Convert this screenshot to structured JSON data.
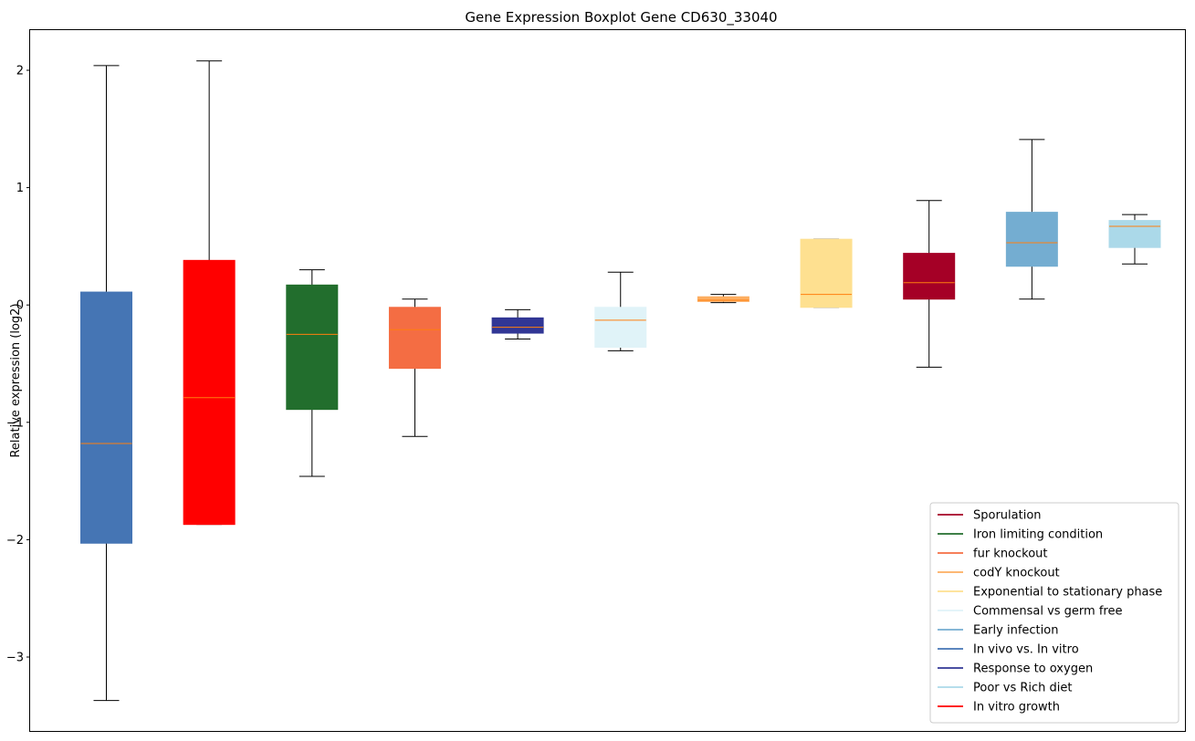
{
  "chart_data": {
    "type": "box",
    "title": "Gene Expression Boxplot Gene CD630_33040",
    "xlabel": "",
    "ylabel": "Relative expression (log2)",
    "ylim": [
      -3.6,
      2.35
    ],
    "yticks": [
      -3,
      -2,
      -1,
      0,
      1,
      2
    ],
    "ytick_labels": [
      "−3",
      "−2",
      "−1",
      "0",
      "1",
      "2"
    ],
    "median_color": "#ff7f0e",
    "grid": false,
    "legend_position": "lower-right",
    "series": [
      {
        "name": "In vivo vs. In vitro",
        "color": "#4575b4",
        "whisker_low": -3.37,
        "q1": -2.03,
        "median": -1.18,
        "q3": 0.11,
        "whisker_high": 2.04
      },
      {
        "name": "In vitro growth",
        "color": "#ff0000",
        "whisker_low": -1.87,
        "q1": -1.87,
        "median": -0.79,
        "q3": 0.38,
        "whisker_high": 2.08
      },
      {
        "name": "Iron limiting condition",
        "color": "#226e2d",
        "whisker_low": -1.46,
        "q1": -0.89,
        "median": -0.25,
        "q3": 0.17,
        "whisker_high": 0.3
      },
      {
        "name": "fur knockout",
        "color": "#f46d43",
        "whisker_low": -1.12,
        "q1": -0.54,
        "median": -0.21,
        "q3": -0.02,
        "whisker_high": 0.05
      },
      {
        "name": "Response to oxygen",
        "color": "#313695",
        "whisker_low": -0.29,
        "q1": -0.24,
        "median": -0.19,
        "q3": -0.11,
        "whisker_high": -0.04
      },
      {
        "name": "Commensal vs germ free",
        "color": "#e0f3f8",
        "whisker_low": -0.39,
        "q1": -0.36,
        "median": -0.13,
        "q3": -0.02,
        "whisker_high": 0.28
      },
      {
        "name": "codY knockout",
        "color": "#fdae61",
        "whisker_low": 0.02,
        "q1": 0.03,
        "median": 0.04,
        "q3": 0.07,
        "whisker_high": 0.09
      },
      {
        "name": "Exponential to stationary phase",
        "color": "#fee090",
        "whisker_low": -0.02,
        "q1": -0.02,
        "median": 0.09,
        "q3": 0.56,
        "whisker_high": 0.56
      },
      {
        "name": "Sporulation",
        "color": "#a50026",
        "whisker_low": -0.53,
        "q1": 0.05,
        "median": 0.19,
        "q3": 0.44,
        "whisker_high": 0.89
      },
      {
        "name": "Early infection",
        "color": "#74add1",
        "whisker_low": 0.05,
        "q1": 0.33,
        "median": 0.53,
        "q3": 0.79,
        "whisker_high": 1.41
      },
      {
        "name": "Poor vs Rich diet",
        "color": "#abd9e9",
        "whisker_low": 0.35,
        "q1": 0.49,
        "median": 0.67,
        "q3": 0.72,
        "whisker_high": 0.77
      }
    ],
    "legend": [
      {
        "label": "Sporulation",
        "color": "#a50026"
      },
      {
        "label": "Iron limiting condition",
        "color": "#226e2d"
      },
      {
        "label": "fur knockout",
        "color": "#f46d43"
      },
      {
        "label": "codY knockout",
        "color": "#fdae61"
      },
      {
        "label": "Exponential to stationary phase",
        "color": "#fee090"
      },
      {
        "label": "Commensal vs germ free",
        "color": "#e0f3f8"
      },
      {
        "label": "Early infection",
        "color": "#74add1"
      },
      {
        "label": "In vivo vs. In vitro",
        "color": "#4575b4"
      },
      {
        "label": "Response to oxygen",
        "color": "#313695"
      },
      {
        "label": "Poor vs Rich diet",
        "color": "#abd9e9"
      },
      {
        "label": "In vitro growth",
        "color": "#ff0000"
      }
    ]
  }
}
